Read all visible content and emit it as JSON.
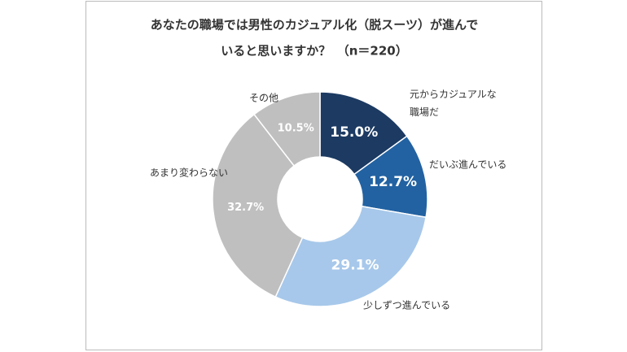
{
  "chart_data": {
    "type": "donut",
    "title": [
      "あなたの職場では男性のカジュアル化（脱スーツ）が進んで",
      "いると思いますか？　（n＝220）"
    ],
    "categories": [
      "元からカジュアルな職場だ",
      "だいぶ進んでいる",
      "少しずつ進んでいる",
      "あまり変わらない",
      "その他"
    ],
    "values": [
      15.0,
      12.7,
      29.1,
      32.7,
      10.5
    ],
    "value_labels": [
      "15.0%",
      "12.7%",
      "29.1%",
      "32.7%",
      "10.5%"
    ],
    "colors": [
      "#1c3a62",
      "#2262a2",
      "#a7c8ea",
      "#bfbfbf",
      "#bfbfbf"
    ]
  }
}
